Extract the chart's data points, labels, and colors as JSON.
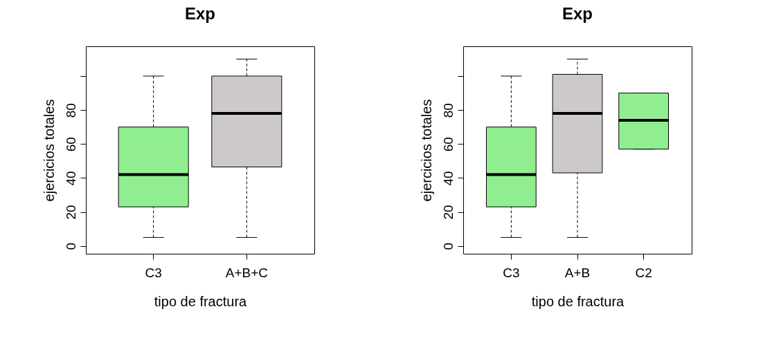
{
  "chart_data": [
    {
      "type": "box",
      "title": "Exp",
      "xlabel": "tipo de fractura",
      "ylabel": "ejercicios totales",
      "categories": [
        "C3",
        "A+B+C"
      ],
      "colors": [
        "#90ee90",
        "#cdc9c9"
      ],
      "boxes": [
        {
          "low": 5,
          "q1": 23,
          "median": 42,
          "q3": 70,
          "high": 100
        },
        {
          "low": 5,
          "q1": 46.5,
          "median": 78,
          "q3": 100,
          "high": 110
        }
      ],
      "ylim": [
        -4.6,
        117.5
      ],
      "yticks": [
        0,
        20,
        40,
        60,
        80,
        {
          "value": 100,
          "label": null
        }
      ]
    },
    {
      "type": "box",
      "title": "Exp",
      "xlabel": "tipo de fractura",
      "ylabel": "ejercicios totales",
      "categories": [
        "C3",
        "A+B",
        "C2"
      ],
      "colors": [
        "#90ee90",
        "#cdc9c9",
        "#90ee90"
      ],
      "boxes": [
        {
          "low": 5,
          "q1": 23,
          "median": 42,
          "q3": 70,
          "high": 100
        },
        {
          "low": 5,
          "q1": 43,
          "median": 78,
          "q3": 101,
          "high": 110
        },
        {
          "low": 57,
          "q1": 57,
          "median": 74,
          "q3": 90,
          "high": 90
        }
      ],
      "ylim": [
        -4.6,
        117.5
      ],
      "yticks": [
        0,
        20,
        40,
        60,
        80,
        {
          "value": 100,
          "label": null
        }
      ]
    }
  ]
}
